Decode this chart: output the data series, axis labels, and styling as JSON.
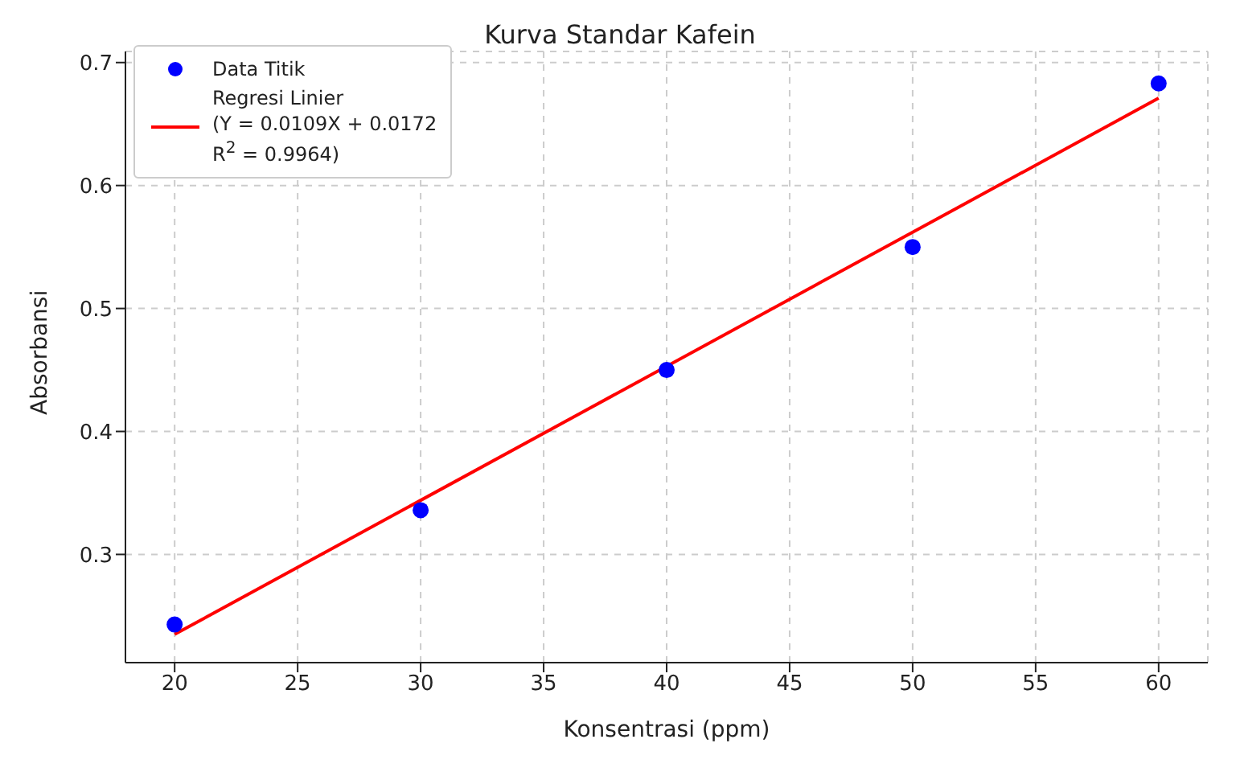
{
  "chart_data": {
    "type": "scatter",
    "title": "Kurva Standar Kafein",
    "xlabel": "Konsentrasi (ppm)",
    "ylabel": "Absorbansi",
    "x": [
      20,
      30,
      40,
      50,
      60
    ],
    "series": [
      {
        "name": "Data Titik",
        "color": "#0000ff",
        "values": [
          0.243,
          0.336,
          0.45,
          0.55,
          0.683
        ],
        "marker": "circle"
      },
      {
        "name": "Regresi Linier\n(Y = 0.0109X + 0.0172\nR$^{2}$ = 0.9964)",
        "type": "line",
        "color": "#ff0000",
        "x": [
          20,
          60
        ],
        "values": [
          0.235,
          0.671
        ],
        "marker": "none",
        "line_style": "solid"
      }
    ],
    "xlim": [
      18,
      62
    ],
    "xticks": [
      20,
      25,
      30,
      35,
      40,
      45,
      50,
      55,
      60
    ],
    "ylim": [
      0.212,
      0.709
    ],
    "yticks": [
      0.3,
      0.4,
      0.5,
      0.6,
      0.7
    ],
    "grid": true,
    "legend": "top left"
  }
}
